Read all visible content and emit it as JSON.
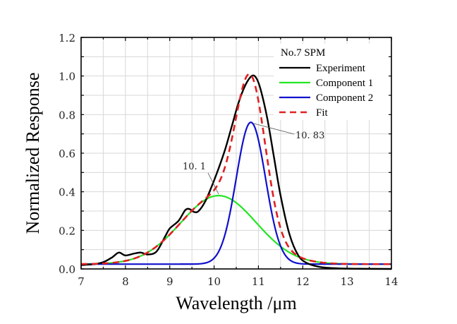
{
  "chart_data": {
    "type": "line",
    "title": "",
    "xlabel": "Wavelength /μm",
    "ylabel": "Normalized Response",
    "xlim": [
      7,
      14
    ],
    "ylim": [
      0,
      1.2
    ],
    "xticks": [
      7,
      8,
      9,
      10,
      11,
      12,
      13,
      14
    ],
    "xtick_labels": [
      "7",
      "8",
      "9",
      "10",
      "11",
      "12",
      "13",
      "14"
    ],
    "yticks": [
      0,
      0.2,
      0.4,
      0.6,
      0.8,
      1.0,
      1.2
    ],
    "ytick_labels": [
      "0.0",
      "0.2",
      "0.4",
      "0.6",
      "0.8",
      "1.0",
      "1.2"
    ],
    "grid": true,
    "legend": {
      "title": "No.7 SPM",
      "position": "top-right",
      "entries": [
        "Experiment",
        "Component 1",
        "Component 2",
        "Fit"
      ]
    },
    "series": [
      {
        "name": "Experiment",
        "color": "#000000",
        "style": "solid",
        "x": [
          7.0,
          7.3,
          7.5,
          7.7,
          7.85,
          8.0,
          8.2,
          8.35,
          8.5,
          8.7,
          8.9,
          9.0,
          9.2,
          9.35,
          9.45,
          9.55,
          9.65,
          9.8,
          9.95,
          10.1,
          10.25,
          10.4,
          10.55,
          10.7,
          10.85,
          10.95,
          11.05,
          11.2,
          11.35,
          11.5,
          11.7,
          11.9,
          12.1,
          12.4,
          12.8,
          13.2,
          14.0
        ],
        "y": [
          0.02,
          0.025,
          0.035,
          0.06,
          0.085,
          0.07,
          0.08,
          0.085,
          0.075,
          0.09,
          0.17,
          0.21,
          0.25,
          0.305,
          0.31,
          0.295,
          0.3,
          0.35,
          0.43,
          0.52,
          0.62,
          0.74,
          0.86,
          0.95,
          1.0,
          0.99,
          0.93,
          0.78,
          0.58,
          0.38,
          0.18,
          0.07,
          0.03,
          0.01,
          0.003,
          0.001,
          0.0
        ]
      },
      {
        "name": "Component 1",
        "color": "#22e622",
        "style": "solid",
        "peak_x": 10.1,
        "peak_y": 0.38,
        "sigma": 0.85,
        "baseline": 0.025
      },
      {
        "name": "Component 2",
        "color": "#1010cc",
        "style": "solid",
        "peak_x": 10.83,
        "peak_y": 0.76,
        "sigma": 0.33,
        "baseline": 0.025
      },
      {
        "name": "Fit",
        "color": "#e02020",
        "style": "dashed",
        "note": "sum of Component 1 and Component 2"
      }
    ],
    "annotations": [
      {
        "text": "10. 1",
        "x": 10.1,
        "y": 0.38
      },
      {
        "text": "10. 83",
        "x": 10.83,
        "y": 0.76
      }
    ]
  }
}
